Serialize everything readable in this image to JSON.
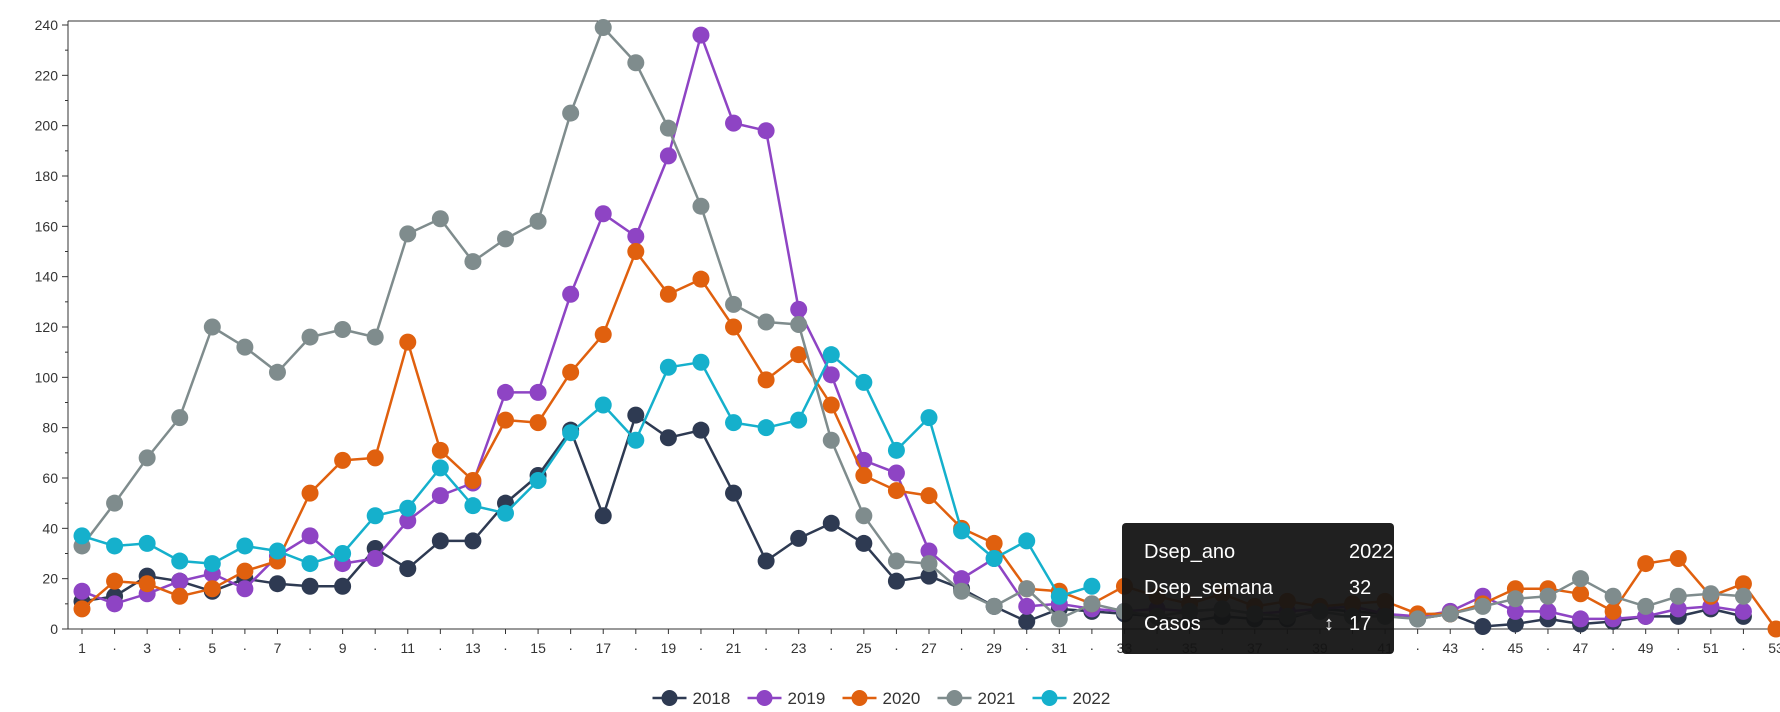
{
  "chart_data": {
    "type": "line",
    "x": [
      1,
      2,
      3,
      4,
      5,
      6,
      7,
      8,
      9,
      10,
      11,
      12,
      13,
      14,
      15,
      16,
      17,
      18,
      19,
      20,
      21,
      22,
      23,
      24,
      25,
      26,
      27,
      28,
      29,
      30,
      31,
      32,
      33,
      34,
      35,
      36,
      37,
      38,
      39,
      40,
      41,
      42,
      43,
      44,
      45,
      46,
      47,
      48,
      49,
      50,
      51,
      52,
      53
    ],
    "x_tick_labels": [
      "1",
      "·",
      "3",
      "·",
      "5",
      "·",
      "7",
      "·",
      "9",
      "·",
      "11",
      "·",
      "13",
      "·",
      "15",
      "·",
      "17",
      "·",
      "19",
      "·",
      "21",
      "·",
      "23",
      "·",
      "25",
      "·",
      "27",
      "·",
      "29",
      "·",
      "31",
      "·",
      "33",
      "·",
      "35",
      "·",
      "37",
      "·",
      "39",
      "·",
      "41",
      "·",
      "43",
      "·",
      "45",
      "·",
      "47",
      "·",
      "49",
      "·",
      "51",
      "·",
      "53"
    ],
    "y_ticks": [
      0,
      20,
      40,
      60,
      80,
      100,
      120,
      140,
      160,
      180,
      200,
      220,
      240
    ],
    "ylim": [
      0,
      240
    ],
    "grid": false,
    "legend_position": "bottom-center",
    "series": [
      {
        "name": "2018",
        "color": "#2e3a52",
        "values": [
          11,
          13,
          21,
          19,
          15,
          20,
          18,
          17,
          17,
          32,
          24,
          35,
          35,
          50,
          61,
          79,
          45,
          85,
          76,
          79,
          54,
          27,
          36,
          42,
          34,
          19,
          21,
          16,
          9,
          3,
          8,
          7,
          6,
          5,
          3,
          5,
          4,
          4,
          8,
          7,
          6,
          4,
          6,
          1,
          2,
          4,
          2,
          3,
          5,
          5,
          8,
          5,
          null
        ]
      },
      {
        "name": "2019",
        "color": "#8e44c4",
        "values": [
          15,
          10,
          14,
          19,
          22,
          16,
          29,
          37,
          26,
          28,
          43,
          53,
          58,
          94,
          94,
          133,
          165,
          156,
          188,
          236,
          201,
          198,
          127,
          101,
          67,
          62,
          31,
          20,
          28,
          9,
          10,
          8,
          7,
          8,
          7,
          8,
          6,
          7,
          8,
          9,
          6,
          5,
          7,
          13,
          7,
          7,
          4,
          4,
          5,
          8,
          9,
          7,
          null
        ]
      },
      {
        "name": "2020",
        "color": "#e0600e",
        "values": [
          8,
          19,
          18,
          13,
          16,
          23,
          27,
          54,
          67,
          68,
          114,
          71,
          59,
          83,
          82,
          102,
          117,
          150,
          133,
          139,
          120,
          99,
          109,
          89,
          61,
          55,
          53,
          40,
          34,
          16,
          15,
          10,
          17,
          13,
          10,
          14,
          9,
          11,
          9,
          10,
          11,
          6,
          6,
          10,
          16,
          16,
          14,
          7,
          26,
          28,
          13,
          18,
          0
        ]
      },
      {
        "name": "2021",
        "color": "#7f8c8d",
        "values": [
          33,
          50,
          68,
          84,
          120,
          112,
          102,
          116,
          119,
          116,
          157,
          163,
          146,
          155,
          162,
          205,
          239,
          225,
          199,
          168,
          129,
          122,
          121,
          75,
          45,
          27,
          26,
          15,
          9,
          16,
          4,
          10,
          7,
          5,
          7,
          8,
          6,
          5,
          7,
          5,
          5,
          4,
          6,
          9,
          12,
          13,
          20,
          13,
          9,
          13,
          14,
          13,
          null
        ]
      },
      {
        "name": "2022",
        "color": "#15b0cc",
        "values": [
          37,
          33,
          34,
          27,
          26,
          33,
          31,
          26,
          30,
          45,
          48,
          64,
          49,
          46,
          59,
          78,
          89,
          75,
          104,
          106,
          82,
          80,
          83,
          109,
          98,
          71,
          84,
          39,
          28,
          35,
          13,
          17,
          null,
          null,
          null,
          null,
          null,
          null,
          null,
          null,
          null,
          null,
          null,
          null,
          null,
          null,
          null,
          null,
          null,
          null,
          null,
          null,
          null
        ]
      }
    ]
  },
  "tooltip": {
    "rows": [
      {
        "key": "Dsep_ano",
        "value": "2022"
      },
      {
        "key": "Dsep_semana",
        "value": "32"
      },
      {
        "key": "Casos",
        "value": "17"
      }
    ],
    "arrow_glyph": "↕"
  }
}
